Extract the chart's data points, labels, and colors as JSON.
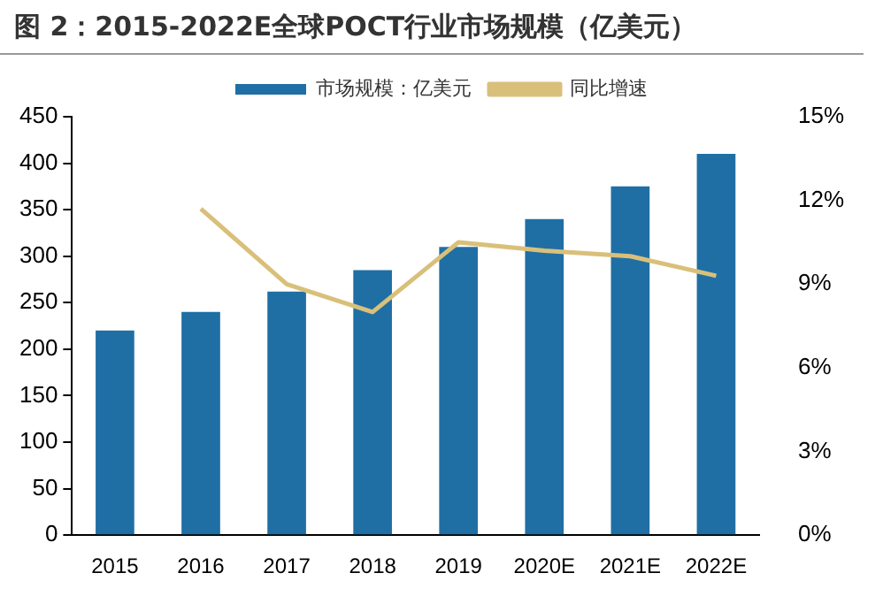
{
  "chart_data": {
    "type": "bar",
    "title": "图 2：2015-2022E全球POCT行业市场规模（亿美元）",
    "categories": [
      "2015",
      "2016",
      "2017",
      "2018",
      "2019",
      "2020E",
      "2021E",
      "2022E"
    ],
    "series": [
      {
        "name": "市场规模：亿美元",
        "color": "#1f6fa5",
        "values": [
          220,
          240,
          262,
          285,
          310,
          340,
          375,
          410
        ]
      },
      {
        "name": "同比增速",
        "type": "line",
        "axis": "y2",
        "color": "#d9c07a",
        "values": [
          null,
          11.7,
          9.0,
          8.0,
          10.5,
          10.2,
          10.0,
          9.3
        ]
      }
    ],
    "ylim": [
      0,
      450
    ],
    "yticks": [
      0,
      50,
      100,
      150,
      200,
      250,
      300,
      350,
      400,
      450
    ],
    "y2lim": [
      0,
      15
    ],
    "y2ticks": [
      {
        "value": 0,
        "label": "0%"
      },
      {
        "value": 3,
        "label": "3%"
      },
      {
        "value": 6,
        "label": "6%"
      },
      {
        "value": 9,
        "label": "9%"
      },
      {
        "value": 12,
        "label": "12%"
      },
      {
        "value": 15,
        "label": "15%"
      }
    ],
    "grid": false,
    "legend": "top",
    "marker": "none"
  }
}
